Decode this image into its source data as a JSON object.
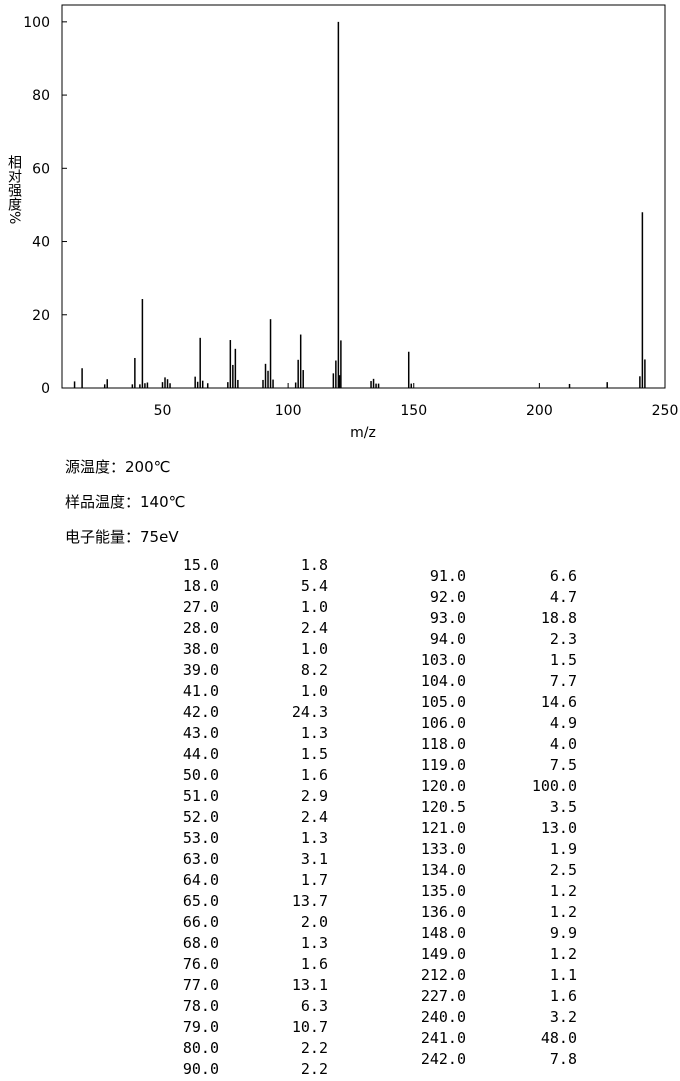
{
  "chart_data": {
    "type": "bar",
    "xlabel": "m/z",
    "ylabel": "相对强度%",
    "xlim": [
      10,
      250
    ],
    "xticks": [
      50,
      100,
      150,
      200,
      250
    ],
    "ylim": [
      0,
      104.6
    ],
    "yticks": [
      0,
      20,
      40,
      60,
      80,
      100
    ],
    "color": "#000000",
    "x": [
      15,
      18,
      27,
      28,
      38,
      39,
      41,
      42,
      43,
      44,
      50,
      51,
      52,
      53,
      63,
      64,
      65,
      66,
      68,
      76,
      77,
      78,
      79,
      80,
      90,
      91,
      92,
      93,
      94,
      103,
      104,
      105,
      106,
      118,
      119,
      120,
      120.5,
      121,
      133,
      134,
      135,
      136,
      148,
      149,
      212,
      227,
      240,
      241,
      242
    ],
    "x_labels": [
      "15.0",
      "18.0",
      "27.0",
      "28.0",
      "38.0",
      "39.0",
      "41.0",
      "42.0",
      "43.0",
      "44.0",
      "50.0",
      "51.0",
      "52.0",
      "53.0",
      "63.0",
      "64.0",
      "65.0",
      "66.0",
      "68.0",
      "76.0",
      "77.0",
      "78.0",
      "79.0",
      "80.0",
      "90.0",
      "91.0",
      "92.0",
      "93.0",
      "94.0",
      "103.0",
      "104.0",
      "105.0",
      "106.0",
      "118.0",
      "119.0",
      "120.0",
      "120.5",
      "121.0",
      "133.0",
      "134.0",
      "135.0",
      "136.0",
      "148.0",
      "149.0",
      "212.0",
      "227.0",
      "240.0",
      "241.0",
      "242.0"
    ],
    "values": [
      1.8,
      5.4,
      1.0,
      2.4,
      1.0,
      8.2,
      1.0,
      24.3,
      1.3,
      1.5,
      1.6,
      2.9,
      2.4,
      1.3,
      3.1,
      1.7,
      13.7,
      2.0,
      1.3,
      1.6,
      13.1,
      6.3,
      10.7,
      2.2,
      2.2,
      6.6,
      4.7,
      18.8,
      2.3,
      1.5,
      7.7,
      14.6,
      4.9,
      4.0,
      7.5,
      100.0,
      3.5,
      13.0,
      1.9,
      2.5,
      1.2,
      1.2,
      9.9,
      1.2,
      1.1,
      1.6,
      3.2,
      48.0,
      7.8
    ],
    "value_labels": [
      "1.8",
      "5.4",
      "1.0",
      "2.4",
      "1.0",
      "8.2",
      "1.0",
      "24.3",
      "1.3",
      "1.5",
      "1.6",
      "2.9",
      "2.4",
      "1.3",
      "3.1",
      "1.7",
      "13.7",
      "2.0",
      "1.3",
      "1.6",
      "13.1",
      "6.3",
      "10.7",
      "2.2",
      "2.2",
      "6.6",
      "4.7",
      "18.8",
      "2.3",
      "1.5",
      "7.7",
      "14.6",
      "4.9",
      "4.0",
      "7.5",
      "100.0",
      "3.5",
      "13.0",
      "1.9",
      "2.5",
      "1.2",
      "1.2",
      "9.9",
      "1.2",
      "1.1",
      "1.6",
      "3.2",
      "48.0",
      "7.8"
    ]
  },
  "conditions": [
    "源温度：200℃",
    "样品温度：140℃",
    "电子能量：75eV"
  ]
}
